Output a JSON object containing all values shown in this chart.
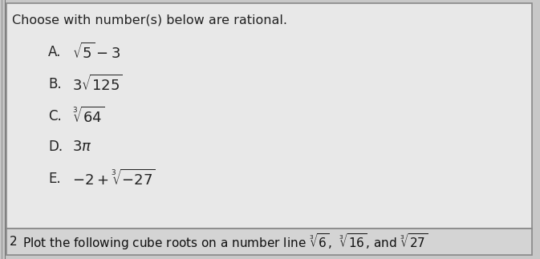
{
  "title": "Choose with number(s) below are rational.",
  "options": [
    {
      "label": "A.",
      "math": "$\\sqrt{5}-3$"
    },
    {
      "label": "B.",
      "math": "$3\\sqrt{125}$"
    },
    {
      "label": "C.",
      "math": "$\\sqrt[3]{64}$"
    },
    {
      "label": "D.",
      "math": "$3\\pi$"
    },
    {
      "label": "E.",
      "math": "$-2+\\sqrt[3]{-27}$"
    }
  ],
  "footer_prefix": "2",
  "footer_text": "Plot the following cube roots on a number line $\\sqrt[3]{6}$,  $\\sqrt[3]{16}$, and $\\sqrt[3]{27}$",
  "bg_color": "#c8c8c8",
  "main_box_color": "#e8e8e8",
  "footer_box_color": "#d4d4d4",
  "border_color": "#888888",
  "title_fontsize": 11.5,
  "option_label_fontsize": 12,
  "option_math_fontsize": 13,
  "footer_fontsize": 11
}
